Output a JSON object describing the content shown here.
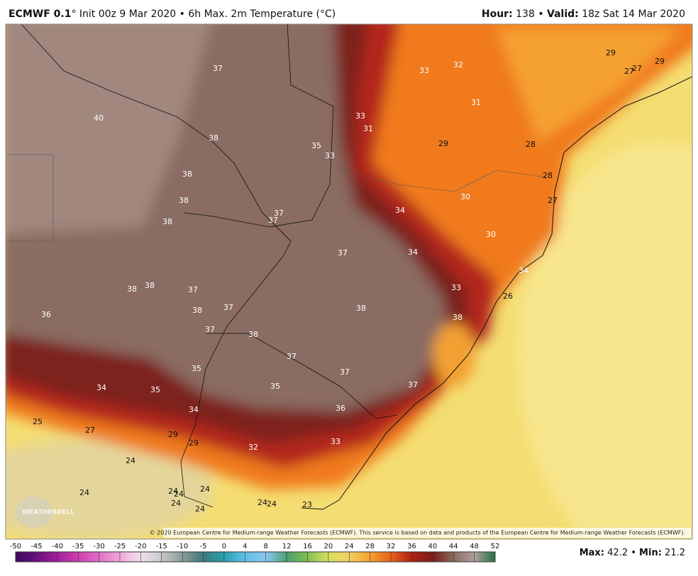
{
  "header": {
    "model": "ECMWF 0.1",
    "title": "° Init 00z 9 Mar 2020 • 6h Max. 2m Temperature (°C)",
    "hour_label": "Hour:",
    "hour": 138,
    "separator": "•",
    "valid_label": "Valid:",
    "valid": "18z Sat 14 Mar 2020"
  },
  "map": {
    "labels": [
      37,
      40,
      38,
      38,
      38,
      38,
      37,
      37,
      35,
      33,
      33,
      31,
      33,
      32,
      31,
      29,
      28,
      29,
      27,
      27,
      29,
      28,
      27,
      30,
      34,
      30,
      34,
      37,
      34,
      33,
      26,
      38,
      38,
      38,
      38,
      37,
      38,
      37,
      36,
      37,
      38,
      37,
      37,
      35,
      34,
      35,
      35,
      37,
      36,
      34,
      25,
      27,
      29,
      29,
      32,
      33,
      24,
      24,
      24,
      24,
      24,
      24,
      24,
      24,
      24,
      23
    ],
    "logo": "WEATHERBELL",
    "copyright": "© 2020 European Centre for Medium-range Weather Forecasts (ECMWF). This service is based on data and products of the European Centre for Medium-range Weather Forecasts (ECMWF)."
  },
  "colorbar": {
    "ticks": [
      -50,
      -45,
      -40,
      -35,
      -30,
      -25,
      -20,
      -15,
      -10,
      -5,
      0,
      4,
      8,
      12,
      16,
      20,
      24,
      28,
      32,
      36,
      40,
      44,
      48,
      52
    ]
  },
  "stats": {
    "max_label": "Max:",
    "max": 42.2,
    "separator": "•",
    "min_label": "Min:",
    "min": 21.2
  }
}
